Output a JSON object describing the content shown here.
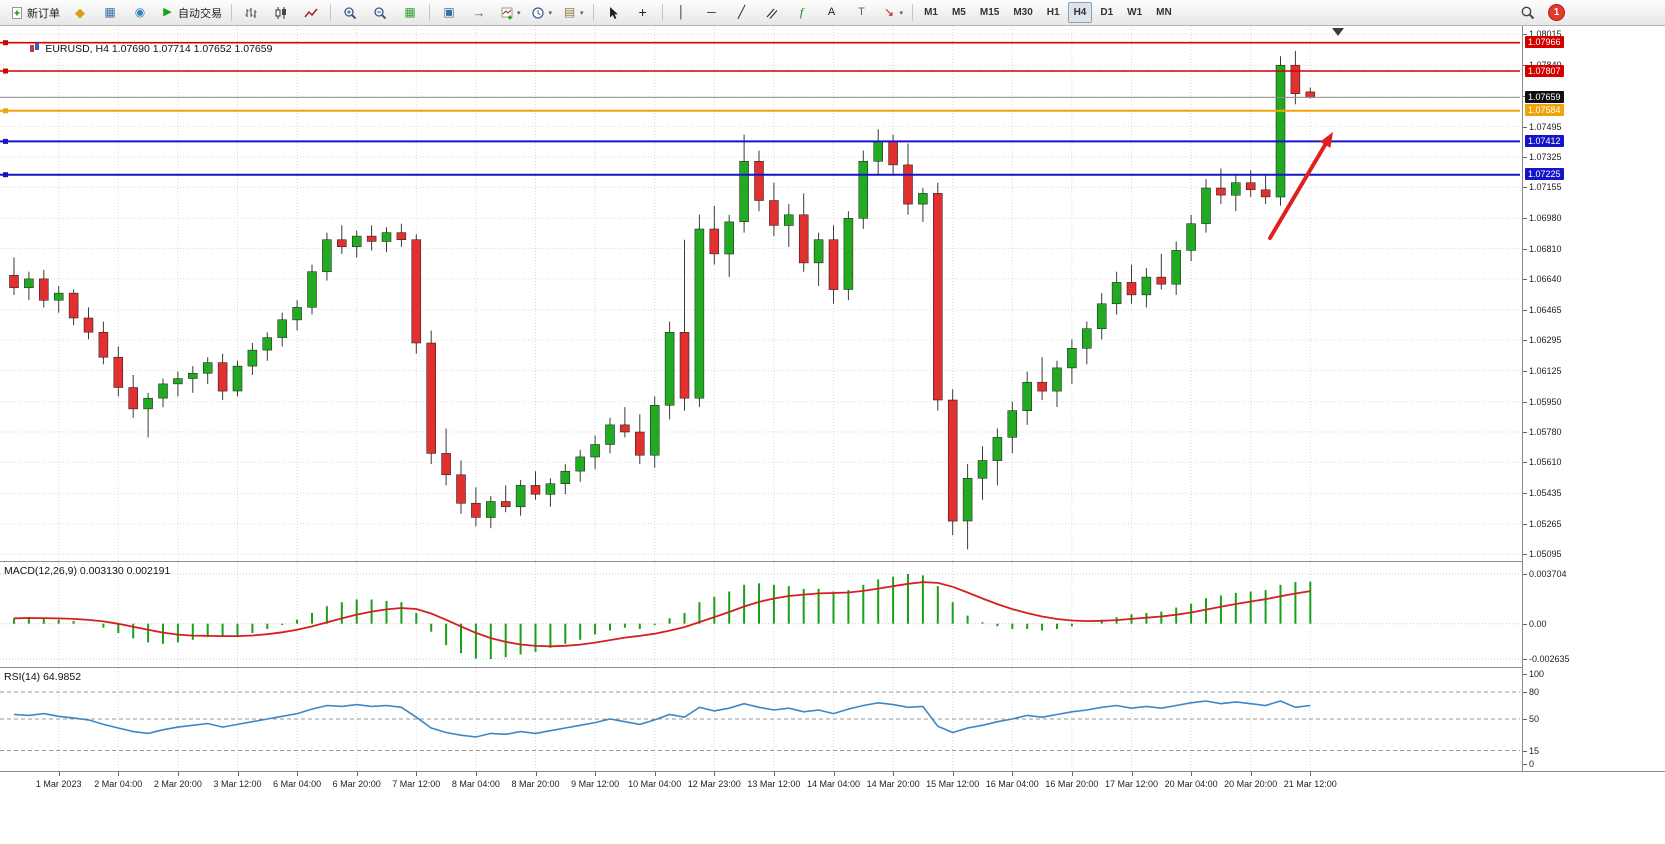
{
  "toolbar": {
    "groups": [
      {
        "items": [
          {
            "name": "new-order-button",
            "icon": "new-order-icon",
            "label": "新订单"
          },
          {
            "name": "metaeditor-button",
            "icon": "metaeditor-icon"
          },
          {
            "name": "market-watch-button",
            "icon": "market-watch-icon"
          },
          {
            "name": "navigator-button",
            "icon": "navigator-icon"
          },
          {
            "name": "auto-trading-button",
            "icon": "autotrading-icon",
            "label": "自动交易"
          }
        ]
      },
      {
        "items": [
          {
            "name": "bar-chart-button",
            "icon": "bars-icon"
          },
          {
            "name": "candlestick-chart-button",
            "icon": "candles-icon"
          },
          {
            "name": "line-chart-button",
            "icon": "linechart-icon"
          }
        ]
      },
      {
        "items": [
          {
            "name": "zoom-in-button",
            "icon": "zoom-in-icon"
          },
          {
            "name": "zoom-out-button",
            "icon": "zoom-out-icon"
          },
          {
            "name": "tile-windows-button",
            "icon": "tiles-icon"
          }
        ]
      },
      {
        "items": [
          {
            "name": "auto-arrange-button",
            "icon": "arrange-icon"
          },
          {
            "name": "chart-shift-button",
            "icon": "shift-icon"
          },
          {
            "name": "new-chart-button",
            "icon": "new-chart-icon",
            "caret": true
          },
          {
            "name": "periods-button",
            "icon": "clock-icon",
            "caret": true
          },
          {
            "name": "templates-button",
            "icon": "templates-icon",
            "caret": true
          }
        ]
      },
      {
        "items": [
          {
            "name": "cursor-button",
            "icon": "cursor-icon"
          },
          {
            "name": "crosshair-button",
            "icon": "crosshair-icon"
          }
        ]
      },
      {
        "items": [
          {
            "name": "vertical-line-button",
            "icon": "vline-icon"
          },
          {
            "name": "horizontal-line-button",
            "icon": "hline-icon"
          },
          {
            "name": "trendline-button",
            "icon": "trendline-icon"
          },
          {
            "name": "equidistant-channel-button",
            "icon": "channel-icon"
          },
          {
            "name": "fibonacci-button",
            "icon": "fibo-icon"
          },
          {
            "name": "text-button",
            "icon": "text-icon"
          },
          {
            "name": "text-label-button",
            "icon": "label-icon"
          },
          {
            "name": "arrows-button",
            "icon": "arrows-icon",
            "caret": true
          }
        ]
      }
    ],
    "timeframes": {
      "label_list": [
        "M1",
        "M5",
        "M15",
        "M30",
        "H1",
        "H4",
        "D1",
        "W1",
        "MN"
      ],
      "active": "H4"
    },
    "right": {
      "icon": "search-icon",
      "notification_badge": "1"
    }
  },
  "chart_data": {
    "type": "candlestick",
    "title": "EURUSD, H4 1.07690 1.07714 1.07652 1.07659",
    "symbol": "EURUSD",
    "period": "H4",
    "ohlc_display": {
      "open": "1.07690",
      "high": "1.07714",
      "low": "1.07652",
      "close": "1.07659"
    },
    "price_axis": {
      "top": 1.08015,
      "bottom": 1.05095,
      "labels": [
        "1.08015",
        "1.07840",
        "1.07665",
        "1.07495",
        "1.07325",
        "1.07155",
        "1.06980",
        "1.06810",
        "1.06640",
        "1.06465",
        "1.06295",
        "1.06125",
        "1.05950",
        "1.05780",
        "1.05610",
        "1.05435",
        "1.05265",
        "1.05095"
      ]
    },
    "time_axis": {
      "labels": [
        "1 Mar 2023",
        "2 Mar 04:00",
        "2 Mar 20:00",
        "3 Mar 12:00",
        "6 Mar 04:00",
        "6 Mar 20:00",
        "7 Mar 12:00",
        "8 Mar 04:00",
        "8 Mar 20:00",
        "9 Mar 12:00",
        "10 Mar 04:00",
        "12 Mar 23:00",
        "13 Mar 12:00",
        "14 Mar 04:00",
        "14 Mar 20:00",
        "15 Mar 12:00",
        "16 Mar 04:00",
        "16 Mar 20:00",
        "17 Mar 12:00",
        "20 Mar 04:00",
        "20 Mar 20:00",
        "21 Mar 12:00"
      ]
    },
    "candles": [
      [
        1.0666,
        1.0676,
        1.0655,
        1.0659
      ],
      [
        1.0659,
        1.0668,
        1.0652,
        1.0664
      ],
      [
        1.0664,
        1.0669,
        1.0648,
        1.0652
      ],
      [
        1.0652,
        1.066,
        1.0645,
        1.0656
      ],
      [
        1.0656,
        1.0658,
        1.0638,
        1.0642
      ],
      [
        1.0642,
        1.0648,
        1.063,
        1.0634
      ],
      [
        1.0634,
        1.064,
        1.0616,
        1.062
      ],
      [
        1.062,
        1.0626,
        1.0598,
        1.0603
      ],
      [
        1.0603,
        1.061,
        1.0586,
        1.0591
      ],
      [
        1.0591,
        1.06,
        1.0575,
        1.0597
      ],
      [
        1.0597,
        1.0608,
        1.0592,
        1.0605
      ],
      [
        1.0605,
        1.0612,
        1.0598,
        1.0608
      ],
      [
        1.0608,
        1.0615,
        1.06,
        1.0611
      ],
      [
        1.0611,
        1.062,
        1.0605,
        1.0617
      ],
      [
        1.0617,
        1.0622,
        1.0596,
        1.0601
      ],
      [
        1.0601,
        1.0618,
        1.0598,
        1.0615
      ],
      [
        1.0615,
        1.0628,
        1.061,
        1.0624
      ],
      [
        1.0624,
        1.0634,
        1.0618,
        1.0631
      ],
      [
        1.0631,
        1.0645,
        1.0626,
        1.0641
      ],
      [
        1.0641,
        1.0652,
        1.0635,
        1.0648
      ],
      [
        1.0648,
        1.0672,
        1.0644,
        1.0668
      ],
      [
        1.0668,
        1.069,
        1.0663,
        1.0686
      ],
      [
        1.0686,
        1.0694,
        1.0678,
        1.0682
      ],
      [
        1.0682,
        1.0691,
        1.0676,
        1.0688
      ],
      [
        1.0688,
        1.0694,
        1.068,
        1.0685
      ],
      [
        1.0685,
        1.0693,
        1.0679,
        1.069
      ],
      [
        1.069,
        1.0695,
        1.0682,
        1.0686
      ],
      [
        1.0686,
        1.0689,
        1.0622,
        1.0628
      ],
      [
        1.0628,
        1.0635,
        1.056,
        1.0566
      ],
      [
        1.0566,
        1.058,
        1.0548,
        1.0554
      ],
      [
        1.0554,
        1.0562,
        1.0532,
        1.0538
      ],
      [
        1.0538,
        1.0547,
        1.0525,
        1.053
      ],
      [
        1.053,
        1.0542,
        1.0524,
        1.0539
      ],
      [
        1.0539,
        1.0548,
        1.0533,
        1.0536
      ],
      [
        1.0536,
        1.0551,
        1.0531,
        1.0548
      ],
      [
        1.0548,
        1.0556,
        1.054,
        1.0543
      ],
      [
        1.0543,
        1.0552,
        1.0536,
        1.0549
      ],
      [
        1.0549,
        1.056,
        1.0543,
        1.0556
      ],
      [
        1.0556,
        1.0568,
        1.055,
        1.0564
      ],
      [
        1.0564,
        1.0576,
        1.0557,
        1.0571
      ],
      [
        1.0571,
        1.0586,
        1.0566,
        1.0582
      ],
      [
        1.0582,
        1.0592,
        1.0575,
        1.0578
      ],
      [
        1.0578,
        1.0588,
        1.056,
        1.0565
      ],
      [
        1.0565,
        1.0598,
        1.0558,
        1.0593
      ],
      [
        1.0593,
        1.064,
        1.0585,
        1.0634
      ],
      [
        1.0634,
        1.0686,
        1.059,
        1.0597
      ],
      [
        1.0597,
        1.07,
        1.0592,
        1.0692
      ],
      [
        1.0692,
        1.0705,
        1.0672,
        1.0678
      ],
      [
        1.0678,
        1.07,
        1.0665,
        1.0696
      ],
      [
        1.0696,
        1.0745,
        1.069,
        1.073
      ],
      [
        1.073,
        1.0736,
        1.0702,
        1.0708
      ],
      [
        1.0708,
        1.0718,
        1.0688,
        1.0694
      ],
      [
        1.0694,
        1.0706,
        1.0682,
        1.07
      ],
      [
        1.07,
        1.0712,
        1.0668,
        1.0673
      ],
      [
        1.0673,
        1.069,
        1.066,
        1.0686
      ],
      [
        1.0686,
        1.0694,
        1.065,
        1.0658
      ],
      [
        1.0658,
        1.0702,
        1.0652,
        1.0698
      ],
      [
        1.0698,
        1.0736,
        1.0692,
        1.073
      ],
      [
        1.073,
        1.0748,
        1.0722,
        1.0741
      ],
      [
        1.0741,
        1.0745,
        1.0722,
        1.0728
      ],
      [
        1.0728,
        1.074,
        1.07,
        1.0706
      ],
      [
        1.0706,
        1.0715,
        1.0696,
        1.0712
      ],
      [
        1.0712,
        1.0718,
        1.059,
        1.0596
      ],
      [
        1.0596,
        1.0602,
        1.052,
        1.0528
      ],
      [
        1.0528,
        1.056,
        1.0512,
        1.0552
      ],
      [
        1.0552,
        1.057,
        1.054,
        1.0562
      ],
      [
        1.0562,
        1.058,
        1.0548,
        1.0575
      ],
      [
        1.0575,
        1.0595,
        1.0566,
        1.059
      ],
      [
        1.059,
        1.0612,
        1.0582,
        1.0606
      ],
      [
        1.0606,
        1.062,
        1.0596,
        1.0601
      ],
      [
        1.0601,
        1.0618,
        1.0592,
        1.0614
      ],
      [
        1.0614,
        1.063,
        1.0605,
        1.0625
      ],
      [
        1.0625,
        1.064,
        1.0616,
        1.0636
      ],
      [
        1.0636,
        1.0656,
        1.063,
        1.065
      ],
      [
        1.065,
        1.0668,
        1.0644,
        1.0662
      ],
      [
        1.0662,
        1.0672,
        1.065,
        1.0655
      ],
      [
        1.0655,
        1.067,
        1.0648,
        1.0665
      ],
      [
        1.0665,
        1.0678,
        1.0658,
        1.0661
      ],
      [
        1.0661,
        1.0685,
        1.0655,
        1.068
      ],
      [
        1.068,
        1.07,
        1.0674,
        1.0695
      ],
      [
        1.0695,
        1.072,
        1.069,
        1.0715
      ],
      [
        1.0715,
        1.0726,
        1.0706,
        1.0711
      ],
      [
        1.0711,
        1.0722,
        1.0702,
        1.0718
      ],
      [
        1.0718,
        1.0725,
        1.071,
        1.0714
      ],
      [
        1.0714,
        1.0722,
        1.0706,
        1.071
      ],
      [
        1.071,
        1.0789,
        1.0705,
        1.0784
      ],
      [
        1.0784,
        1.0792,
        1.0762,
        1.0768
      ],
      [
        1.0769,
        1.07714,
        1.07652,
        1.07659
      ]
    ],
    "price_lines": [
      {
        "price": 1.07966,
        "label": "1.07966",
        "color": "#d40000",
        "width": 1.6
      },
      {
        "price": 1.07807,
        "label": "1.07807",
        "color": "#d40000",
        "width": 1.6
      },
      {
        "price": 1.07584,
        "label": "1.07584",
        "color": "#efa50a",
        "width": 2
      },
      {
        "price": 1.07412,
        "label": "1.07412",
        "color": "#1414c8",
        "width": 2
      },
      {
        "price": 1.07225,
        "label": "1.07225",
        "color": "#1414c8",
        "width": 2
      }
    ],
    "bid_line": {
      "price": 1.07659,
      "label": "1.07659"
    },
    "annotations": [
      {
        "type": "arrow",
        "direction": "up-right",
        "color": "#e02020"
      }
    ],
    "indicators": {
      "macd": {
        "label": "MACD(12,26,9) 0.003130 0.002191",
        "max": 0.003704,
        "min": -0.002635,
        "scale_labels": [
          "0.003704",
          "0.00",
          "-0.002635"
        ],
        "histogram_color": "#18a018",
        "signal_color": "#d42020",
        "values": [
          0.0004,
          0.0005,
          0.0004,
          0.0003,
          0.0002,
          0.0,
          -0.0003,
          -0.0007,
          -0.0011,
          -0.0014,
          -0.0015,
          -0.0014,
          -0.0012,
          -0.001,
          -0.001,
          -0.0009,
          -0.0007,
          -0.0004,
          -0.0001,
          0.0003,
          0.0008,
          0.0013,
          0.0016,
          0.0018,
          0.0018,
          0.0017,
          0.0016,
          0.0008,
          -0.0006,
          -0.0016,
          -0.0022,
          -0.0026,
          -0.002635,
          -0.0025,
          -0.0023,
          -0.0021,
          -0.0018,
          -0.0015,
          -0.0012,
          -0.0008,
          -0.0005,
          -0.0003,
          -0.0004,
          -0.0001,
          0.0004,
          0.0008,
          0.0016,
          0.002,
          0.0024,
          0.0029,
          0.003,
          0.0029,
          0.0028,
          0.0026,
          0.0026,
          0.0024,
          0.0025,
          0.0029,
          0.0033,
          0.0035,
          0.003704,
          0.0036,
          0.0028,
          0.0016,
          0.0006,
          0.0001,
          -0.0002,
          -0.0004,
          -0.0004,
          -0.0005,
          -0.0004,
          -0.0002,
          0.0,
          0.0003,
          0.0005,
          0.0007,
          0.0008,
          0.0009,
          0.0012,
          0.0015,
          0.0019,
          0.0021,
          0.0023,
          0.0024,
          0.0025,
          0.0029,
          0.0031,
          0.00313
        ]
      },
      "rsi": {
        "label": "RSI(14) 64.9852",
        "max": 100,
        "min": 0,
        "levels": [
          80,
          50,
          15
        ],
        "scale_labels": [
          "100",
          "80",
          "50",
          "15",
          "0"
        ],
        "line_color": "#3f85c6",
        "values": [
          55,
          54,
          56,
          53,
          51,
          49,
          44,
          40,
          36,
          34,
          38,
          41,
          43,
          45,
          41,
          44,
          47,
          50,
          53,
          56,
          61,
          65,
          64,
          66,
          64,
          65,
          63,
          52,
          40,
          35,
          32,
          30,
          34,
          33,
          36,
          34,
          37,
          40,
          43,
          46,
          50,
          47,
          44,
          49,
          55,
          52,
          63,
          59,
          62,
          67,
          63,
          60,
          62,
          58,
          60,
          56,
          61,
          65,
          68,
          66,
          63,
          64,
          42,
          35,
          40,
          43,
          47,
          50,
          54,
          52,
          55,
          58,
          60,
          63,
          65,
          62,
          64,
          62,
          65,
          68,
          70,
          67,
          69,
          67,
          65,
          70,
          63,
          64.9852
        ]
      }
    },
    "colors": {
      "up": "#22ab22",
      "down": "#e03030",
      "wick": "#3a3a3a",
      "grid": "#dadada",
      "background": "#ffffff"
    }
  }
}
